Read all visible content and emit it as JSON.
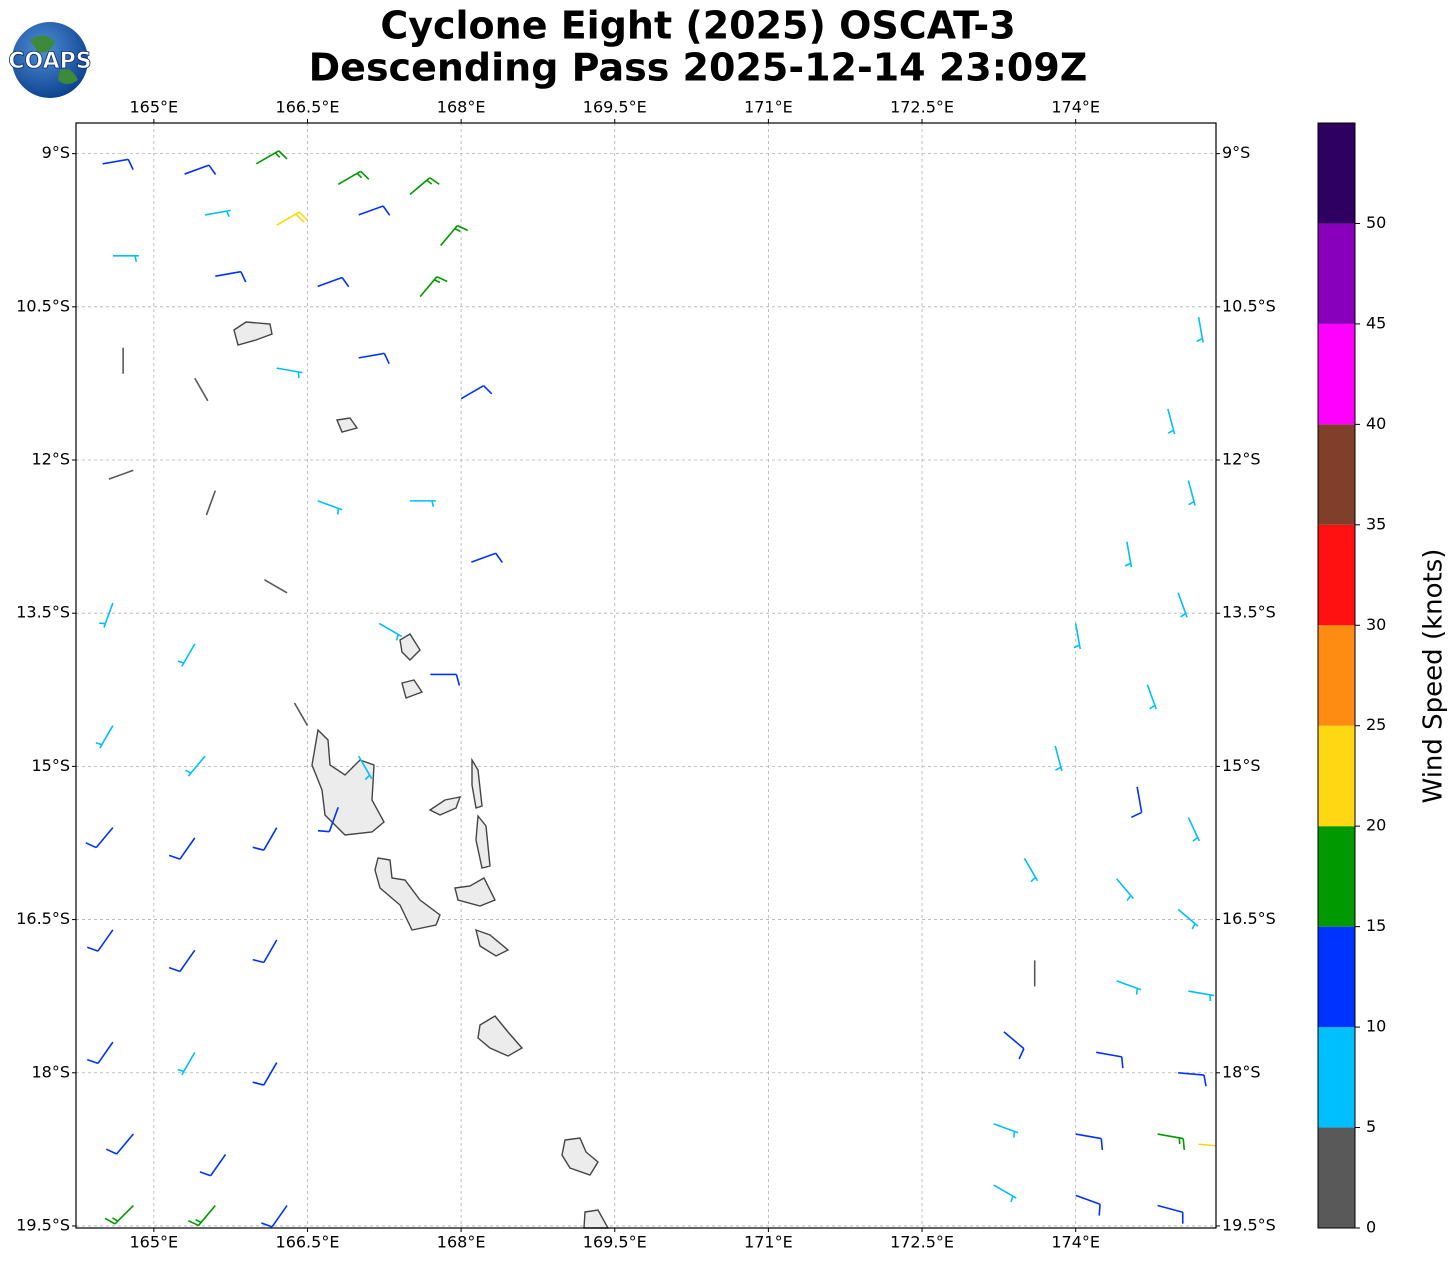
{
  "logo": "COAPS",
  "chart_data": {
    "type": "wind-barb-map",
    "title": "Cyclone Eight (2025) OSCAT-3",
    "subtitle": "Descending Pass 2025-12-14 23:09Z",
    "xlim": [
      164.24,
      175.37
    ],
    "ylim": [
      -19.52,
      -8.7
    ],
    "xticks": [
      {
        "value": 165,
        "label": "165°E"
      },
      {
        "value": 166.5,
        "label": "166.5°E"
      },
      {
        "value": 168,
        "label": "168°E"
      },
      {
        "value": 169.5,
        "label": "169.5°E"
      },
      {
        "value": 171,
        "label": "171°E"
      },
      {
        "value": 172.5,
        "label": "172.5°E"
      },
      {
        "value": 174,
        "label": "174°E"
      }
    ],
    "yticks": [
      {
        "value": -9,
        "label": "9°S"
      },
      {
        "value": -10.5,
        "label": "10.5°S"
      },
      {
        "value": -12,
        "label": "12°S"
      },
      {
        "value": -13.5,
        "label": "13.5°S"
      },
      {
        "value": -15,
        "label": "15°S"
      },
      {
        "value": -16.5,
        "label": "16.5°S"
      },
      {
        "value": -18,
        "label": "18°S"
      },
      {
        "value": -19.5,
        "label": "19.5°S"
      }
    ],
    "grid": true,
    "colorbar": {
      "label": "Wind Speed (knots)",
      "bounds": [
        0,
        5,
        10,
        15,
        20,
        25,
        30,
        35,
        40,
        45,
        50,
        55
      ],
      "colors": [
        "#595959",
        "#00bfff",
        "#0033ff",
        "#009900",
        "#ffd712",
        "#ff8c12",
        "#ff1111",
        "#7f3f2a",
        "#ff00ff",
        "#8800bb",
        "#2e0060"
      ],
      "ticks": [
        0,
        5,
        10,
        15,
        20,
        25,
        30,
        35,
        40,
        45,
        50
      ]
    },
    "wind": {
      "lon": [
        164.5,
        165.3,
        166.0,
        166.8,
        167.5,
        165.5,
        166.2,
        167.0,
        167.8,
        164.6,
        165.6,
        166.6,
        167.6,
        164.7,
        165.4,
        166.2,
        167.0,
        168.0,
        164.8,
        165.6,
        166.6,
        167.5,
        168.1,
        164.6,
        165.4,
        166.3,
        167.2,
        167.7,
        164.6,
        165.5,
        166.5,
        167.0,
        164.6,
        165.4,
        166.2,
        166.8,
        164.6,
        165.4,
        166.2,
        164.6,
        165.4,
        166.2,
        164.8,
        165.7,
        164.8,
        165.6,
        166.3,
        175.2,
        174.9,
        175.1,
        174.5,
        175.0,
        174.0,
        174.7,
        173.8,
        174.6,
        175.1,
        173.5,
        174.4,
        175.0,
        173.6,
        174.4,
        175.1,
        173.3,
        174.2,
        175.0,
        173.2,
        174.0,
        174.8,
        175.2,
        173.2,
        174.0,
        174.8
      ],
      "lat": [
        -9.1,
        -9.2,
        -9.1,
        -9.3,
        -9.4,
        -9.6,
        -9.7,
        -9.6,
        -9.9,
        -10.0,
        -10.2,
        -10.3,
        -10.4,
        -10.9,
        -11.2,
        -11.1,
        -11.0,
        -11.4,
        -12.1,
        -12.3,
        -12.4,
        -12.4,
        -13.0,
        -13.4,
        -13.8,
        -13.3,
        -13.6,
        -14.1,
        -14.6,
        -14.9,
        -14.6,
        -14.9,
        -15.6,
        -15.7,
        -15.6,
        -15.4,
        -16.6,
        -16.8,
        -16.7,
        -17.7,
        -17.8,
        -17.9,
        -18.6,
        -18.8,
        -19.3,
        -19.3,
        -19.3,
        -10.6,
        -11.5,
        -12.2,
        -12.8,
        -13.3,
        -13.6,
        -14.2,
        -14.8,
        -15.2,
        -15.5,
        -15.9,
        -16.1,
        -16.4,
        -16.9,
        -17.1,
        -17.2,
        -17.6,
        -17.8,
        -18.0,
        -18.5,
        -18.6,
        -18.6,
        -18.7,
        -19.1,
        -19.2,
        -19.3
      ],
      "speed": [
        12,
        13,
        15,
        17,
        16,
        9,
        22,
        14,
        18,
        8,
        10,
        12,
        19,
        3,
        4,
        6,
        12,
        11,
        4,
        3,
        7,
        9,
        12,
        7,
        8,
        4,
        6,
        11,
        9,
        8,
        3,
        7,
        12,
        13,
        12,
        11,
        13,
        12,
        13,
        12,
        9,
        11,
        12,
        13,
        17,
        16,
        12,
        7,
        8,
        7,
        8,
        8,
        7,
        8,
        8,
        12,
        8,
        9,
        8,
        9,
        4,
        8,
        9,
        11,
        10,
        12,
        9,
        12,
        17,
        22,
        8,
        11,
        13
      ],
      "direction": [
        80,
        70,
        60,
        60,
        50,
        80,
        60,
        70,
        40,
        90,
        80,
        70,
        40,
        180,
        150,
        100,
        80,
        60,
        250,
        200,
        110,
        90,
        70,
        200,
        210,
        300,
        120,
        90,
        210,
        220,
        330,
        150,
        220,
        215,
        210,
        200,
        215,
        215,
        210,
        215,
        210,
        210,
        220,
        215,
        225,
        220,
        215,
        170,
        165,
        165,
        170,
        160,
        170,
        160,
        165,
        170,
        155,
        150,
        140,
        130,
        180,
        110,
        100,
        130,
        100,
        95,
        110,
        100,
        100,
        95,
        120,
        110,
        105
      ]
    }
  }
}
